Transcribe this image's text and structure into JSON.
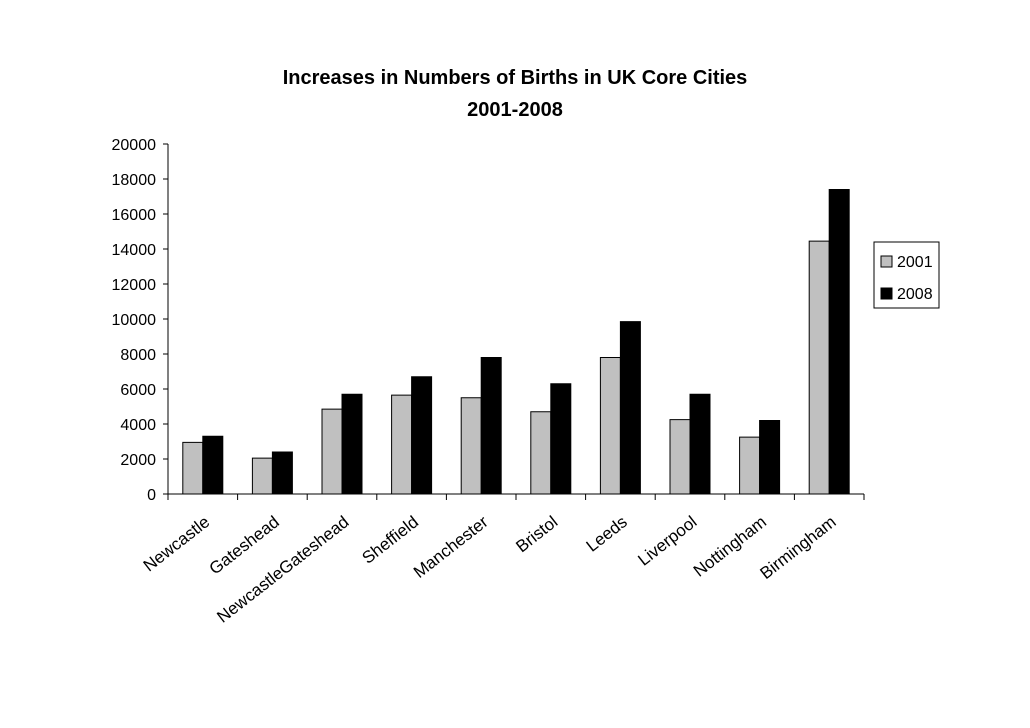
{
  "chart_data": {
    "type": "bar",
    "title": "Increases in Numbers of Births in UK Core Cities",
    "subtitle": "2001-2008",
    "xlabel": "",
    "ylabel": "",
    "ylim": [
      0,
      20000
    ],
    "yticks": [
      "20000",
      "18000",
      "16000",
      "14000",
      "12000",
      "10000",
      "8000",
      "6000",
      "4000",
      "2000",
      "0"
    ],
    "categories": [
      "Newcastle",
      "Gateshead",
      "NewcastleGateshead",
      "Sheffield",
      "Manchester",
      "Bristol",
      "Leeds",
      "Liverpool",
      "Nottingham",
      "Birmingham"
    ],
    "series": [
      {
        "name": "2001",
        "color": "#c0c0c0",
        "values": [
          2950,
          2050,
          4850,
          5650,
          5500,
          4700,
          7800,
          4250,
          3250,
          14450
        ]
      },
      {
        "name": "2008",
        "color": "#000000",
        "values": [
          3300,
          2400,
          5700,
          6700,
          7800,
          6300,
          9850,
          5700,
          4200,
          17400
        ]
      }
    ],
    "grid": false,
    "legend": "right"
  }
}
